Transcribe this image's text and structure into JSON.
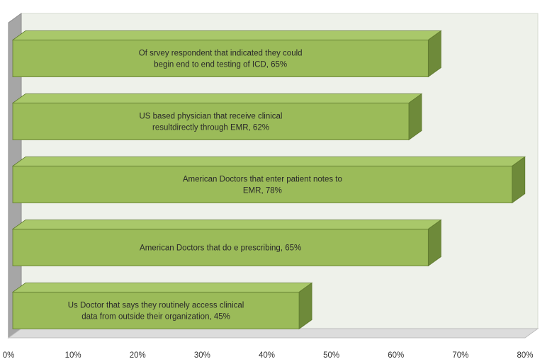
{
  "chart_data": {
    "type": "bar",
    "orientation": "horizontal",
    "three_d": true,
    "title": "",
    "xlabel": "",
    "ylabel": "",
    "xlim": [
      0,
      80
    ],
    "xticks": [
      "0%",
      "10%",
      "20%",
      "30%",
      "40%",
      "50%",
      "60%",
      "70%",
      "80%"
    ],
    "grid": false,
    "legend": "none",
    "colors": {
      "bar_front": "#9bbb59",
      "bar_top": "#a9c86a",
      "bar_side": "#6e8a3a",
      "bar_edge": "#5f7a2e",
      "back_wall": "#eef1ea",
      "side_wall": "#a6a6a6",
      "floor": "#dcdcdc"
    },
    "bars": [
      {
        "value": 65,
        "label_lines": [
          "Of srvey respondent that indicated they could",
          "begin end to end testing of ICD, 65%"
        ]
      },
      {
        "value": 62,
        "label_lines": [
          "US based physician that receive clinical",
          "resultdirectly through EMR,  62%"
        ]
      },
      {
        "value": 78,
        "label_lines": [
          "American Doctors that enter  patient notes to",
          "EMR, 78%"
        ]
      },
      {
        "value": 65,
        "label_lines": [
          "American Doctors that do e prescribing, 65%"
        ]
      },
      {
        "value": 45,
        "label_lines": [
          "Us Doctor that says they routinely access clinical",
          "data from outside their organization, 45%"
        ]
      }
    ]
  }
}
